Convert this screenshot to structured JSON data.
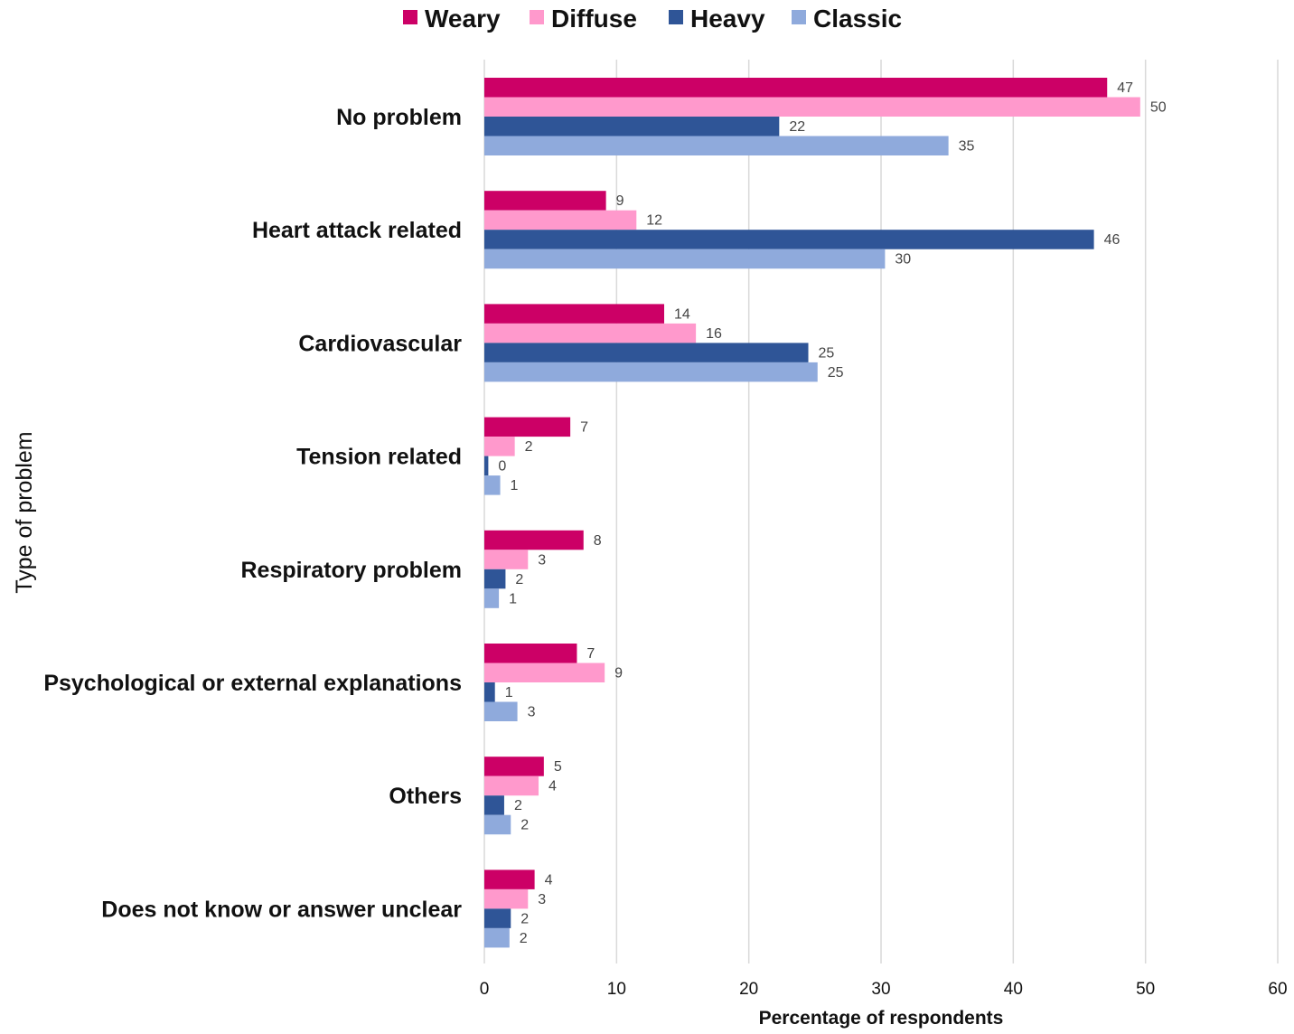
{
  "chart_data": {
    "type": "bar",
    "orientation": "horizontal",
    "title": "",
    "xlabel": "Percentage of respondents",
    "ylabel": "Type of problem",
    "xlim": [
      0,
      60
    ],
    "xticks": [
      0,
      10,
      20,
      30,
      40,
      50,
      60
    ],
    "grid": "vertical",
    "legend_position": "top",
    "categories": [
      "No problem",
      "Heart attack related",
      "Cardiovascular",
      "Tension related",
      "Respiratory problem",
      "Psychological or external explanations",
      "Others",
      "Does not know or answer unclear"
    ],
    "series": [
      {
        "name": "Weary",
        "color": "#cc0066",
        "values": [
          47.1,
          9.2,
          13.6,
          6.5,
          7.5,
          7.0,
          4.5,
          3.8
        ],
        "labels": [
          "47",
          "9",
          "14",
          "7",
          "8",
          "7",
          "5",
          "4"
        ]
      },
      {
        "name": "Diffuse",
        "color": "#ff99cc",
        "values": [
          49.6,
          11.5,
          16.0,
          2.3,
          3.3,
          9.1,
          4.1,
          3.3
        ],
        "labels": [
          "50",
          "12",
          "16",
          "2",
          "3",
          "9",
          "4",
          "3"
        ]
      },
      {
        "name": "Heavy",
        "color": "#2f5597",
        "values": [
          22.3,
          46.1,
          24.5,
          0.3,
          1.6,
          0.8,
          1.5,
          2.0
        ],
        "labels": [
          "22",
          "46",
          "25",
          "0",
          "2",
          "1",
          "2",
          "2"
        ]
      },
      {
        "name": "Classic",
        "color": "#8faadc",
        "values": [
          35.1,
          30.3,
          25.2,
          1.2,
          1.1,
          2.5,
          2.0,
          1.9
        ],
        "labels": [
          "35",
          "30",
          "25",
          "1",
          "1",
          "3",
          "2",
          "2"
        ]
      }
    ]
  }
}
